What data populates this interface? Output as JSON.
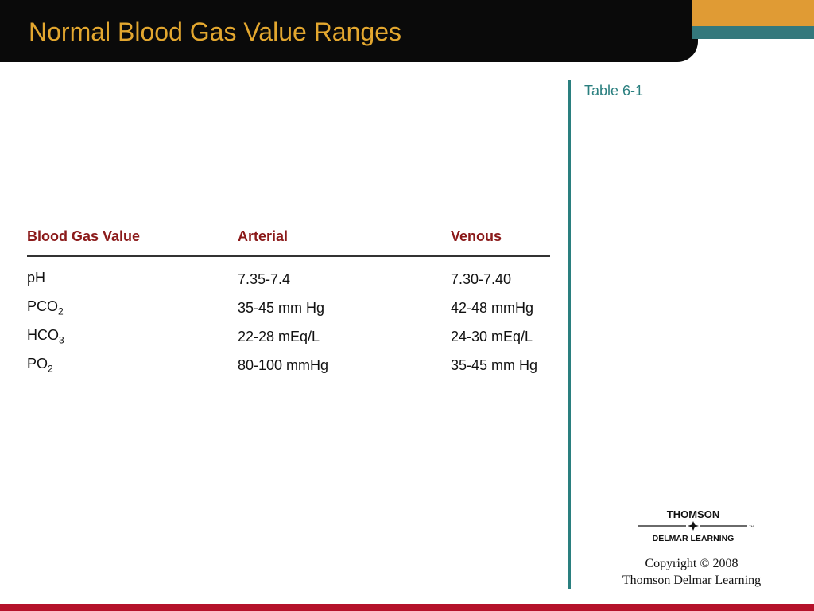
{
  "slide": {
    "title": "Normal Blood Gas Value Ranges",
    "table_ref": "Table 6-1",
    "copyright_line1": "Copyright © 2008",
    "copyright_line2": "Thomson Delmar Learning"
  },
  "logo": {
    "line1": "THOMSON",
    "line2": "DELMAR LEARNING",
    "tm": "TM"
  },
  "table": {
    "headers": [
      "Blood Gas Value",
      "Arterial",
      "Venous"
    ],
    "rows": [
      {
        "name": "pH",
        "sub": "",
        "arterial": "7.35-7.4",
        "venous": "7.30-7.40"
      },
      {
        "name": "PCO",
        "sub": "2",
        "arterial": "35-45 mm Hg",
        "venous": "42-48 mmHg"
      },
      {
        "name": "HCO",
        "sub": "3",
        "arterial": "22-28 mEq/L",
        "venous": "24-30 mEq/L"
      },
      {
        "name": "PO",
        "sub": "2",
        "arterial": "80-100 mmHg",
        "venous": "35-45 mm Hg"
      }
    ]
  },
  "colors": {
    "title": "#e3a72f",
    "header_text": "#8b1a1a",
    "accent_teal": "#2a7f7f",
    "accent_orange": "#e09b34",
    "bottom_bar": "#b5122a"
  }
}
